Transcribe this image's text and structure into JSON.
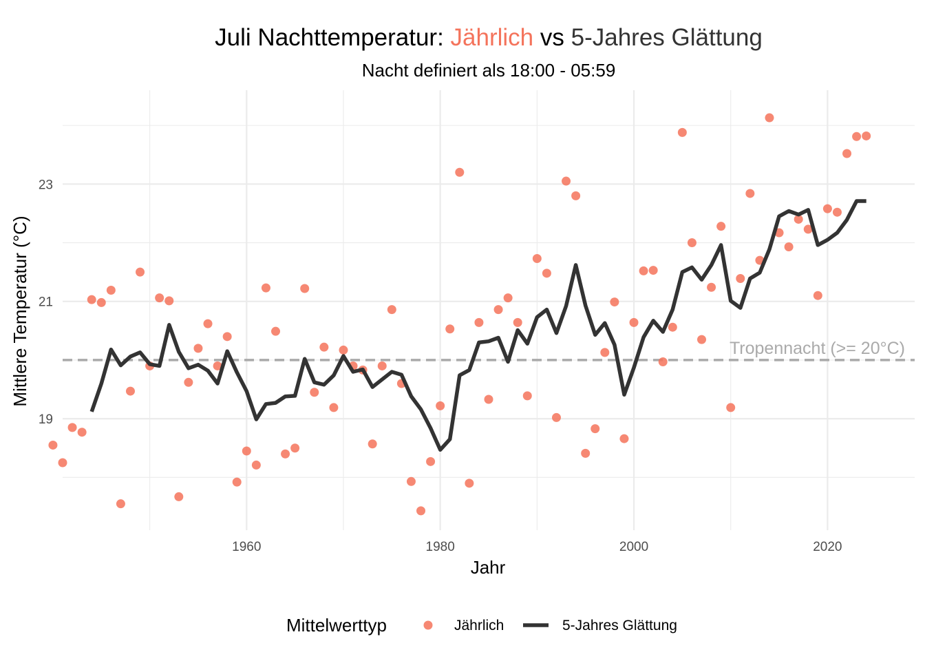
{
  "chart_data": {
    "type": "scatter+line",
    "title_parts": [
      "Juli Nachttemperatur: ",
      "Jährlich",
      " vs ",
      "5-Jahres Glättung"
    ],
    "subtitle": "Nacht definiert als 18:00 - 05:59",
    "xlabel": "Jahr",
    "ylabel": "Mittlere Temperatur (°C)",
    "xlim": [
      1941,
      2029
    ],
    "ylim": [
      17.1,
      24.6
    ],
    "x_ticks": [
      1960,
      1980,
      2000,
      2020
    ],
    "y_ticks": [
      19,
      21,
      23
    ],
    "x_minor": [
      1950,
      1970,
      1990,
      2010
    ],
    "y_minor": [
      18,
      20,
      22,
      24
    ],
    "threshold": {
      "value": 20,
      "label": "Tropennacht (>= 20°C)"
    },
    "colors": {
      "annual": "#F4735B",
      "smooth": "#333333",
      "threshold": "#AAAAAA",
      "grid": "#EBEBEB"
    },
    "legend": {
      "title": "Mittelwerttyp",
      "annual_label": "Jährlich",
      "smooth_label": "5-Jahres Glättung"
    },
    "annual": {
      "x": [
        1940,
        1941,
        1942,
        1943,
        1944,
        1945,
        1946,
        1947,
        1948,
        1949,
        1950,
        1951,
        1952,
        1953,
        1954,
        1955,
        1956,
        1957,
        1958,
        1959,
        1960,
        1961,
        1962,
        1963,
        1964,
        1965,
        1966,
        1967,
        1968,
        1969,
        1970,
        1971,
        1972,
        1973,
        1974,
        1975,
        1976,
        1977,
        1978,
        1979,
        1980,
        1981,
        1982,
        1983,
        1984,
        1985,
        1986,
        1987,
        1988,
        1989,
        1990,
        1991,
        1992,
        1993,
        1994,
        1995,
        1996,
        1997,
        1998,
        1999,
        2000,
        2001,
        2002,
        2003,
        2004,
        2005,
        2006,
        2007,
        2008,
        2009,
        2010,
        2011,
        2012,
        2013,
        2014,
        2015,
        2016,
        2017,
        2018,
        2019,
        2020,
        2021,
        2022,
        2023,
        2024
      ],
      "y": [
        18.55,
        18.25,
        18.85,
        18.77,
        21.03,
        20.98,
        21.19,
        17.55,
        19.47,
        21.5,
        19.9,
        21.06,
        21.01,
        17.67,
        19.62,
        20.2,
        20.62,
        19.9,
        20.4,
        17.92,
        18.45,
        18.21,
        21.23,
        20.49,
        18.4,
        18.5,
        21.22,
        19.45,
        20.22,
        19.19,
        20.17,
        19.9,
        19.83,
        18.57,
        19.9,
        20.86,
        19.6,
        17.93,
        17.43,
        18.27,
        19.22,
        20.53,
        23.2,
        17.9,
        20.64,
        19.33,
        20.86,
        21.06,
        20.64,
        19.39,
        21.73,
        21.48,
        19.02,
        23.05,
        22.8,
        18.41,
        18.83,
        20.13,
        20.99,
        18.66,
        20.64,
        21.52,
        21.53,
        19.97,
        20.56,
        23.88,
        22.0,
        20.35,
        21.24,
        22.28,
        19.19,
        21.39,
        22.84,
        21.7,
        24.13,
        22.17,
        21.93,
        22.4,
        22.23,
        21.1,
        22.58,
        22.52,
        23.52,
        23.81,
        23.82
      ]
    },
    "smooth": {
      "x": [
        1944,
        1945,
        1946,
        1947,
        1948,
        1949,
        1950,
        1951,
        1952,
        1953,
        1954,
        1955,
        1956,
        1957,
        1958,
        1959,
        1960,
        1961,
        1962,
        1963,
        1964,
        1965,
        1966,
        1967,
        1968,
        1969,
        1970,
        1971,
        1972,
        1973,
        1974,
        1975,
        1976,
        1977,
        1978,
        1979,
        1980,
        1981,
        1982,
        1983,
        1984,
        1985,
        1986,
        1987,
        1988,
        1989,
        1990,
        1991,
        1992,
        1993,
        1994,
        1995,
        1996,
        1997,
        1998,
        1999,
        2000,
        2001,
        2002,
        2003,
        2004,
        2005,
        2006,
        2007,
        2008,
        2009,
        2010,
        2011,
        2012,
        2013,
        2014,
        2015,
        2016,
        2017,
        2018,
        2019,
        2020,
        2021,
        2022,
        2023,
        2024
      ],
      "y": [
        19.12,
        19.6,
        20.18,
        19.91,
        20.06,
        20.13,
        19.93,
        19.9,
        20.6,
        20.14,
        19.86,
        19.92,
        19.82,
        19.6,
        20.15,
        19.79,
        19.47,
        18.99,
        19.25,
        19.27,
        19.38,
        19.39,
        20.02,
        19.62,
        19.58,
        19.74,
        20.07,
        19.8,
        19.84,
        19.54,
        19.67,
        19.8,
        19.75,
        19.38,
        19.16,
        18.84,
        18.47,
        18.65,
        19.74,
        19.83,
        20.3,
        20.32,
        20.38,
        19.97,
        20.51,
        20.28,
        20.73,
        20.86,
        20.46,
        20.92,
        21.62,
        20.93,
        20.43,
        20.63,
        20.26,
        19.41,
        19.87,
        20.39,
        20.67,
        20.48,
        20.86,
        21.5,
        21.58,
        21.37,
        21.62,
        21.96,
        21.01,
        20.89,
        21.39,
        21.49,
        21.89,
        22.45,
        22.54,
        22.48,
        22.56,
        21.96,
        22.05,
        22.17,
        22.39,
        22.71,
        22.71
      ]
    }
  }
}
